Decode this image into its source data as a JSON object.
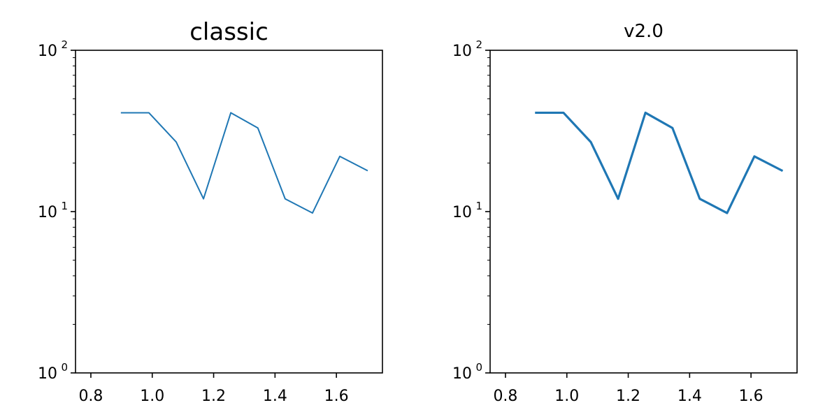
{
  "chart_data": [
    {
      "type": "line",
      "title": "classic",
      "xlabel": "",
      "ylabel": "",
      "xlim": [
        0.75,
        1.75
      ],
      "ylim": [
        1,
        100
      ],
      "yscale": "log",
      "grid": false,
      "x_ticks": [
        "0.8",
        "1.0",
        "1.2",
        "1.4",
        "1.6"
      ],
      "x_tick_values": [
        0.8,
        1.0,
        1.2,
        1.4,
        1.6
      ],
      "y_ticks": [
        {
          "base": "10",
          "exp": "0",
          "value": 1
        },
        {
          "base": "10",
          "exp": "1",
          "value": 10
        },
        {
          "base": "10",
          "exp": "2",
          "value": 100
        }
      ],
      "series": [
        {
          "color": "#1f77b4",
          "style": "thin",
          "x": [
            0.9,
            0.989,
            1.078,
            1.167,
            1.256,
            1.344,
            1.433,
            1.522,
            1.611,
            1.7
          ],
          "y": [
            41,
            41,
            27,
            12,
            41,
            33,
            12,
            9.8,
            22,
            18
          ]
        }
      ]
    },
    {
      "type": "line",
      "title": "v2.0",
      "xlabel": "",
      "ylabel": "",
      "xlim": [
        0.75,
        1.75
      ],
      "ylim": [
        1,
        100
      ],
      "yscale": "log",
      "grid": false,
      "x_ticks": [
        "0.8",
        "1.0",
        "1.2",
        "1.4",
        "1.6"
      ],
      "x_tick_values": [
        0.8,
        1.0,
        1.2,
        1.4,
        1.6
      ],
      "y_ticks": [
        {
          "base": "10",
          "exp": "0",
          "value": 1
        },
        {
          "base": "10",
          "exp": "1",
          "value": 10
        },
        {
          "base": "10",
          "exp": "2",
          "value": 100
        }
      ],
      "series": [
        {
          "color": "#1f77b4",
          "style": "thick",
          "x": [
            0.9,
            0.989,
            1.078,
            1.167,
            1.256,
            1.344,
            1.433,
            1.522,
            1.611,
            1.7
          ],
          "y": [
            41,
            41,
            27,
            12,
            41,
            33,
            12,
            9.8,
            22,
            18
          ]
        }
      ]
    }
  ]
}
